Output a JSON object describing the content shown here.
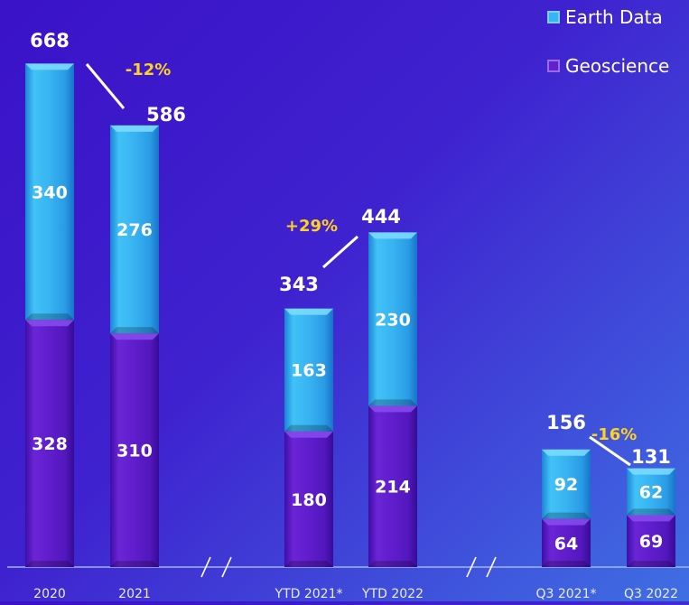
{
  "legend": [
    {
      "label": "Earth Data",
      "color": "#35b5f2"
    },
    {
      "label": "Geoscience",
      "color": "#6320cf"
    }
  ],
  "chart_data": {
    "type": "bar",
    "stacked": true,
    "categories": [
      "2020",
      "2021",
      "YTD 2021*",
      "YTD 2022",
      "Q3 2021*",
      "Q3 2022"
    ],
    "series": [
      {
        "name": "Geoscience",
        "values": [
          328,
          310,
          180,
          214,
          64,
          69
        ],
        "color": "#6320cf"
      },
      {
        "name": "Earth Data",
        "values": [
          340,
          276,
          163,
          230,
          92,
          62
        ],
        "color": "#35b5f2"
      }
    ],
    "totals": [
      668,
      586,
      343,
      444,
      156,
      131
    ],
    "growth_labels": [
      {
        "text": "-12%",
        "from": "2020",
        "to": "2021"
      },
      {
        "text": "+29%",
        "from": "YTD 2021*",
        "to": "YTD 2022"
      },
      {
        "text": "-16%",
        "from": "Q3 2021*",
        "to": "Q3 2022"
      }
    ],
    "annotation_color": "#ffd21f",
    "axis_break": true
  }
}
